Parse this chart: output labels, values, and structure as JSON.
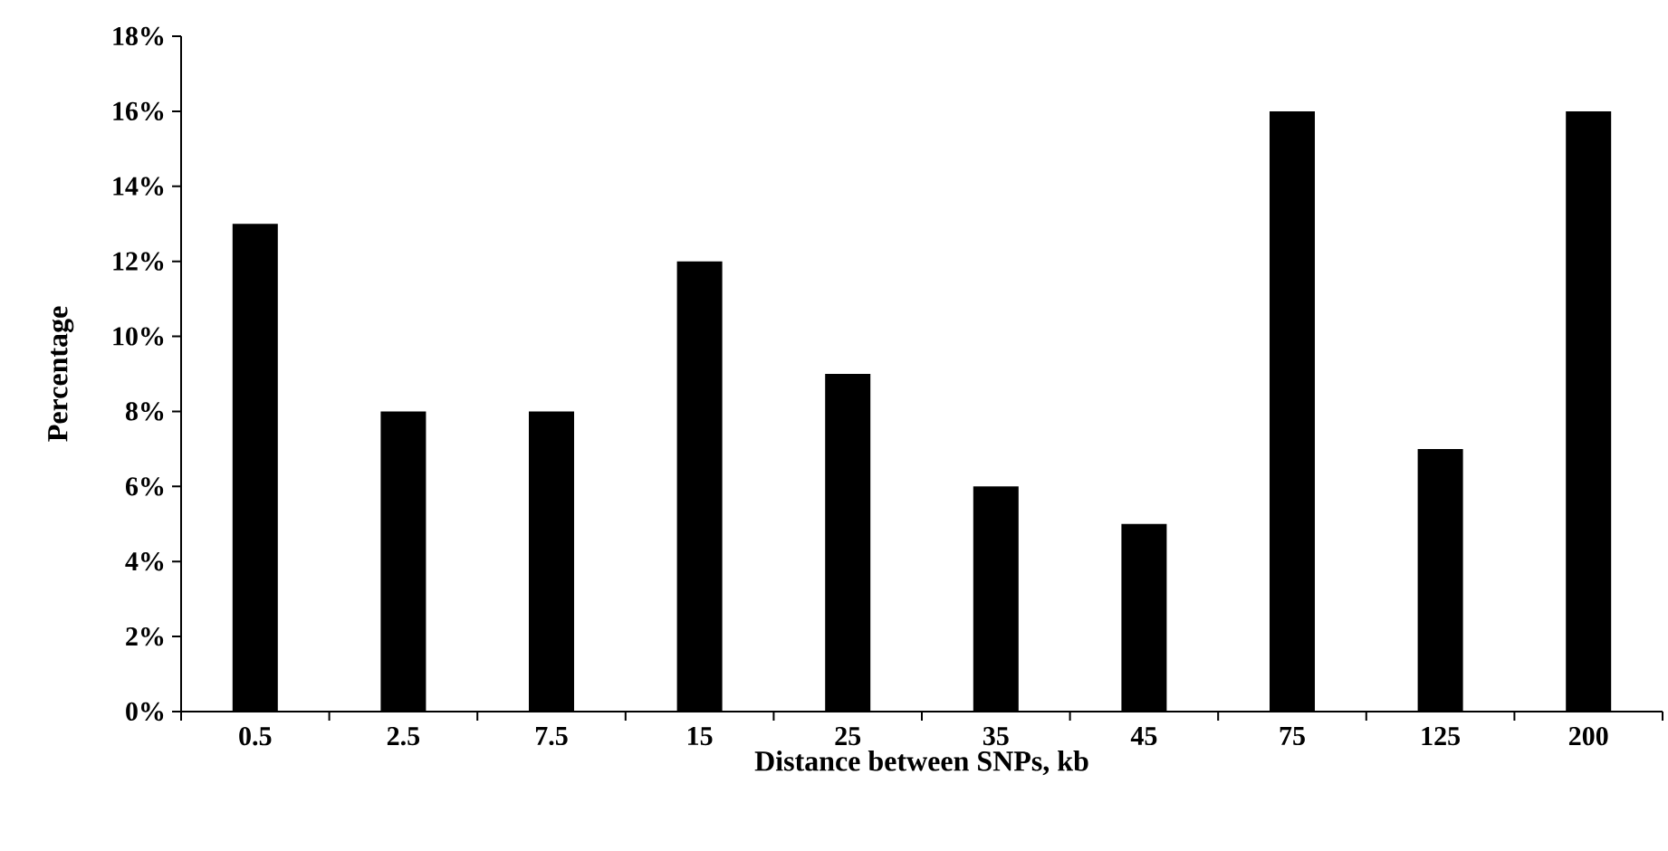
{
  "chart_data": {
    "type": "bar",
    "xlabel": "Distance between SNPs, kb",
    "ylabel": "Percentage",
    "categories": [
      "0.5",
      "2.5",
      "7.5",
      "15",
      "25",
      "35",
      "45",
      "75",
      "125",
      "200"
    ],
    "values": [
      13,
      8,
      8,
      12,
      9,
      6,
      5,
      16,
      7,
      16
    ],
    "color": "#000000",
    "ylim": [
      0,
      18
    ],
    "yticks": [
      {
        "value": 0,
        "label": "0%"
      },
      {
        "value": 2,
        "label": "2%"
      },
      {
        "value": 4,
        "label": "4%"
      },
      {
        "value": 6,
        "label": "6%"
      },
      {
        "value": 8,
        "label": "8%"
      },
      {
        "value": 10,
        "label": "10%"
      },
      {
        "value": 12,
        "label": "12%"
      },
      {
        "value": 14,
        "label": "14%"
      },
      {
        "value": 16,
        "label": "16%"
      },
      {
        "value": 18,
        "label": "18%"
      }
    ],
    "grid": false
  }
}
